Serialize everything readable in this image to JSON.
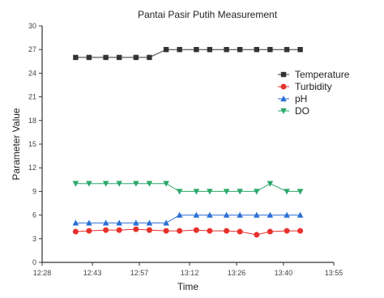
{
  "chart_data": {
    "type": "line",
    "title": "Pantai Pasir Putih Measurement",
    "xlabel": "Time",
    "ylabel": "Parameter Value",
    "xlim": [
      "12:28",
      "13:55"
    ],
    "ylim": [
      0,
      30
    ],
    "x_ticks": [
      "12:28",
      "12:43",
      "12:57",
      "13:12",
      "13:26",
      "13:40",
      "13:55"
    ],
    "y_ticks": [
      0,
      3,
      6,
      9,
      12,
      15,
      18,
      21,
      24,
      27,
      30
    ],
    "x": [
      "12:38",
      "12:42",
      "12:47",
      "12:51",
      "12:56",
      "13:00",
      "13:05",
      "13:09",
      "13:14",
      "13:18",
      "13:23",
      "13:27",
      "13:32",
      "13:36",
      "13:41",
      "13:45"
    ],
    "legend_position": "right",
    "grid": false,
    "series": [
      {
        "name": "Temperature",
        "marker": "square",
        "color": "#333333",
        "values": [
          26,
          26,
          26,
          26,
          26,
          26,
          27,
          27,
          27,
          27,
          27,
          27,
          27,
          27,
          27,
          27
        ]
      },
      {
        "name": "Turbidity",
        "marker": "circle",
        "color": "#e8312c",
        "values": [
          3.9,
          4.0,
          4.1,
          4.1,
          4.2,
          4.1,
          4.0,
          4.0,
          4.1,
          4.0,
          4.0,
          3.9,
          3.5,
          3.9,
          4.0,
          4.0
        ]
      },
      {
        "name": "pH",
        "marker": "triangle-up",
        "color": "#2a6fd4",
        "values": [
          5,
          5,
          5,
          5,
          5,
          5,
          5,
          6,
          6,
          6,
          6,
          6,
          6,
          6,
          6,
          6
        ]
      },
      {
        "name": "DO",
        "marker": "triangle-down",
        "color": "#2aa86a",
        "values": [
          10,
          10,
          10,
          10,
          10,
          10,
          10,
          9,
          9,
          9,
          9,
          9,
          9,
          10,
          9,
          9
        ]
      }
    ]
  }
}
